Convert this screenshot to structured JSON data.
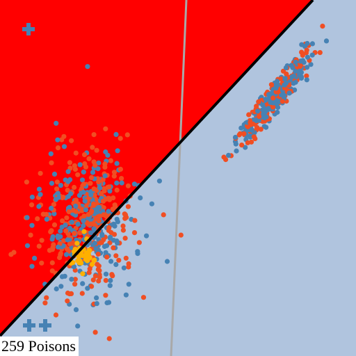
{
  "poison_label": "259 Poisons",
  "colors": {
    "background": "#b0c4de",
    "poison_region": "#ff0000",
    "clean_point": "#4682b4",
    "poison_point": "#f04e23",
    "target_point": "#ffb000",
    "boundary_line": "#000000",
    "reference_line": "#a9a9a9",
    "marker": "#4682b4"
  },
  "markers": {
    "icon": "plus-icon",
    "count": 3
  }
}
